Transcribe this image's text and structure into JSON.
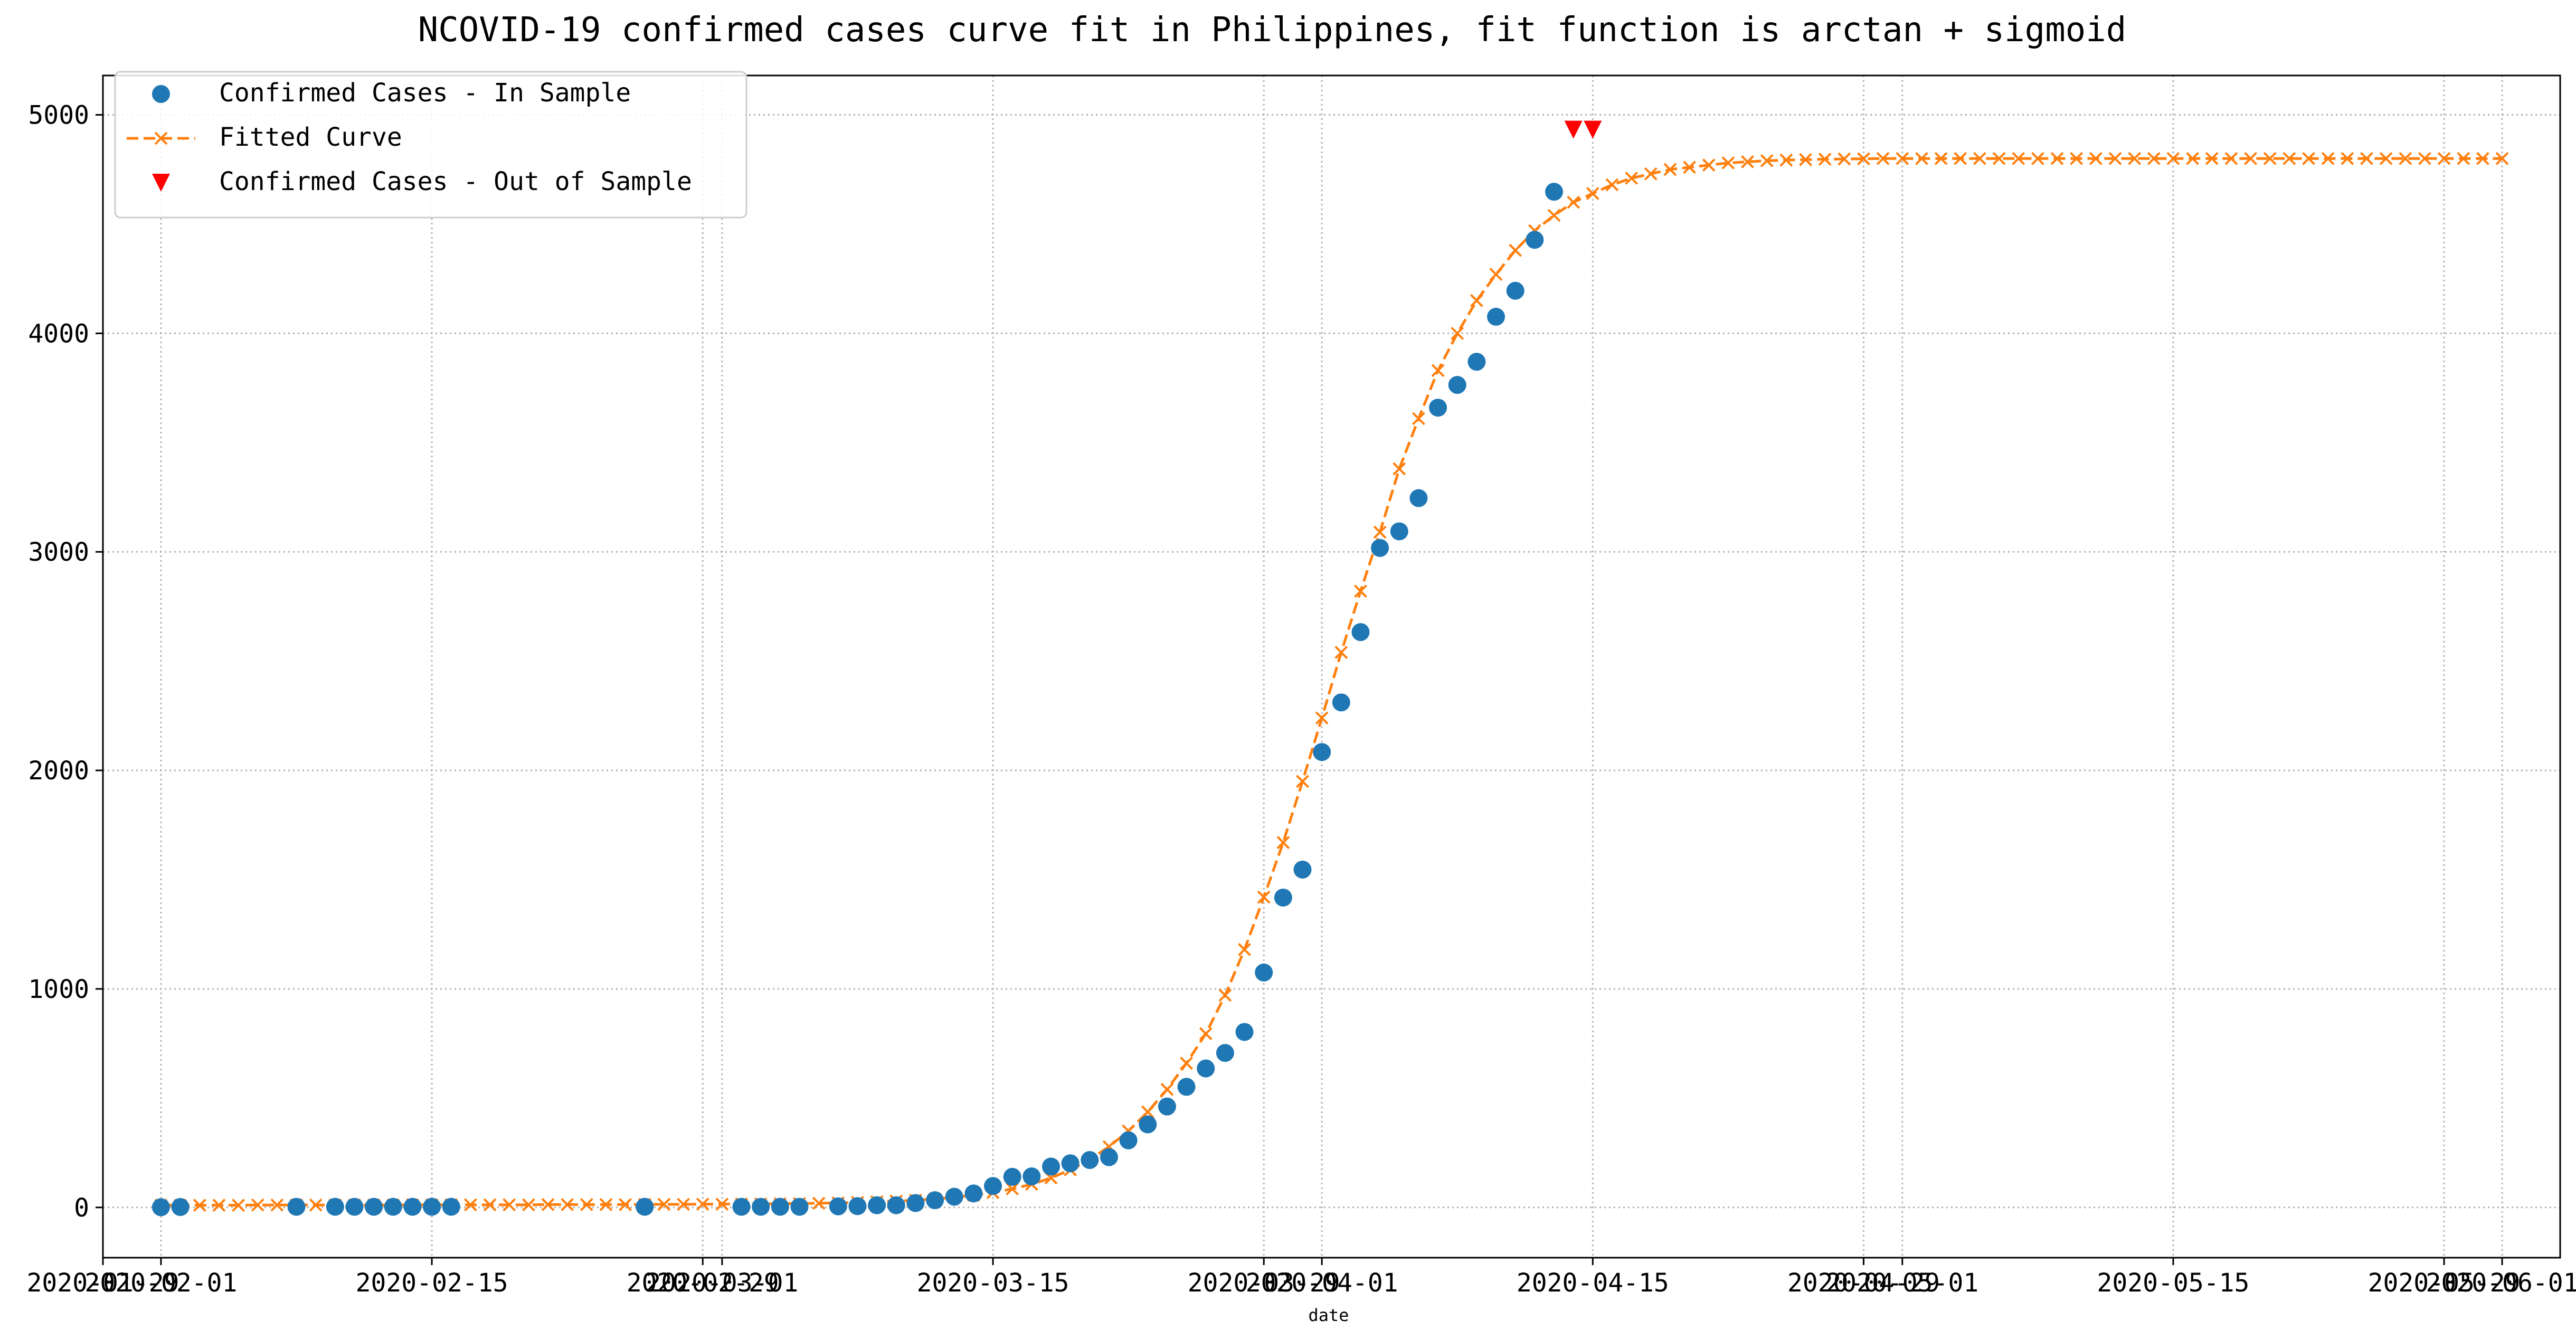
{
  "chart_data": {
    "type": "scatter",
    "title": "NCOVID-19 confirmed cases curve fit in Philippines, fit function is arctan + sigmoid",
    "xlabel": "date",
    "ylabel": "",
    "xlim": [
      "2020-01-29",
      "2020-06-04"
    ],
    "ylim": [
      -230,
      5180
    ],
    "grid": true,
    "legend_position": "top-left",
    "colors": {
      "in_sample": "#1f77b4",
      "fitted": "#ff7f0e",
      "out_sample": "#ff0000",
      "grid": "#b0b0b0"
    },
    "x_ticks": [
      {
        "date": "2020-01-29",
        "label": "2020-01-29"
      },
      {
        "date": "2020-02-01",
        "label": "2020-02-01"
      },
      {
        "date": "2020-02-15",
        "label": "2020-02-15"
      },
      {
        "date": "2020-02-29",
        "label": "2020-02-29"
      },
      {
        "date": "2020-03-01",
        "label": "2020-03-01"
      },
      {
        "date": "2020-03-15",
        "label": "2020-03-15"
      },
      {
        "date": "2020-03-29",
        "label": "2020-03-29"
      },
      {
        "date": "2020-04-01",
        "label": "2020-04-01"
      },
      {
        "date": "2020-04-15",
        "label": "2020-04-15"
      },
      {
        "date": "2020-04-29",
        "label": "2020-04-29"
      },
      {
        "date": "2020-05-01",
        "label": "2020-05-01"
      },
      {
        "date": "2020-05-15",
        "label": "2020-05-15"
      },
      {
        "date": "2020-05-29",
        "label": "2020-05-29"
      },
      {
        "date": "2020-06-01",
        "label": "2020-06-01"
      }
    ],
    "y_ticks": [
      {
        "value": 0,
        "label": "0"
      },
      {
        "value": 1000,
        "label": "1000"
      },
      {
        "value": 2000,
        "label": "2000"
      },
      {
        "value": 3000,
        "label": "3000"
      },
      {
        "value": 4000,
        "label": "4000"
      },
      {
        "value": 5000,
        "label": "5000"
      }
    ],
    "series": [
      {
        "name": "Confirmed Cases - In Sample",
        "marker": "circle",
        "points": [
          {
            "x": "2020-02-01",
            "y": 1
          },
          {
            "x": "2020-02-02",
            "y": 2
          },
          {
            "x": "2020-02-08",
            "y": 3
          },
          {
            "x": "2020-02-10",
            "y": 3
          },
          {
            "x": "2020-02-11",
            "y": 3
          },
          {
            "x": "2020-02-12",
            "y": 3
          },
          {
            "x": "2020-02-13",
            "y": 3
          },
          {
            "x": "2020-02-14",
            "y": 3
          },
          {
            "x": "2020-02-15",
            "y": 3
          },
          {
            "x": "2020-02-16",
            "y": 3
          },
          {
            "x": "2020-02-26",
            "y": 3
          },
          {
            "x": "2020-03-02",
            "y": 3
          },
          {
            "x": "2020-03-03",
            "y": 3
          },
          {
            "x": "2020-03-04",
            "y": 3
          },
          {
            "x": "2020-03-05",
            "y": 3
          },
          {
            "x": "2020-03-07",
            "y": 5
          },
          {
            "x": "2020-03-08",
            "y": 6
          },
          {
            "x": "2020-03-09",
            "y": 10
          },
          {
            "x": "2020-03-10",
            "y": 10
          },
          {
            "x": "2020-03-11",
            "y": 20
          },
          {
            "x": "2020-03-12",
            "y": 33
          },
          {
            "x": "2020-03-13",
            "y": 49
          },
          {
            "x": "2020-03-14",
            "y": 64
          },
          {
            "x": "2020-03-15",
            "y": 98
          },
          {
            "x": "2020-03-16",
            "y": 140
          },
          {
            "x": "2020-03-17",
            "y": 142
          },
          {
            "x": "2020-03-18",
            "y": 187
          },
          {
            "x": "2020-03-19",
            "y": 202
          },
          {
            "x": "2020-03-20",
            "y": 217
          },
          {
            "x": "2020-03-21",
            "y": 230
          },
          {
            "x": "2020-03-22",
            "y": 307
          },
          {
            "x": "2020-03-23",
            "y": 380
          },
          {
            "x": "2020-03-24",
            "y": 462
          },
          {
            "x": "2020-03-25",
            "y": 552
          },
          {
            "x": "2020-03-26",
            "y": 636
          },
          {
            "x": "2020-03-27",
            "y": 707
          },
          {
            "x": "2020-03-28",
            "y": 803
          },
          {
            "x": "2020-03-29",
            "y": 1075
          },
          {
            "x": "2020-03-30",
            "y": 1418
          },
          {
            "x": "2020-03-31",
            "y": 1546
          },
          {
            "x": "2020-04-01",
            "y": 2084
          },
          {
            "x": "2020-04-02",
            "y": 2311
          },
          {
            "x": "2020-04-03",
            "y": 2633
          },
          {
            "x": "2020-04-04",
            "y": 3018
          },
          {
            "x": "2020-04-05",
            "y": 3094
          },
          {
            "x": "2020-04-06",
            "y": 3246
          },
          {
            "x": "2020-04-07",
            "y": 3660
          },
          {
            "x": "2020-04-08",
            "y": 3764
          },
          {
            "x": "2020-04-09",
            "y": 3870
          },
          {
            "x": "2020-04-10",
            "y": 4076
          },
          {
            "x": "2020-04-11",
            "y": 4195
          },
          {
            "x": "2020-04-12",
            "y": 4428
          },
          {
            "x": "2020-04-13",
            "y": 4648
          }
        ]
      },
      {
        "name": "Fitted Curve",
        "marker": "x",
        "line": "dashed",
        "start": "2020-02-01",
        "values": [
          10,
          10,
          10,
          10,
          10,
          11,
          11,
          11,
          11,
          11,
          11,
          11,
          11,
          12,
          12,
          12,
          12,
          12,
          12,
          12,
          13,
          13,
          13,
          13,
          13,
          14,
          14,
          14,
          15,
          15,
          16,
          16,
          17,
          18,
          19,
          21,
          23,
          26,
          29,
          33,
          39,
          46,
          56,
          68,
          85,
          106,
          135,
          172,
          219,
          278,
          350,
          437,
          540,
          660,
          795,
          971,
          1180,
          1420,
          1670,
          1950,
          2240,
          2540,
          2820,
          3090,
          3380,
          3610,
          3830,
          4000,
          4150,
          4270,
          4380,
          4470,
          4540,
          4600,
          4640,
          4680,
          4710,
          4730,
          4750,
          4760,
          4770,
          4780,
          4785,
          4790,
          4793,
          4795,
          4797,
          4798,
          4799,
          4800,
          4800,
          4800,
          4800,
          4800,
          4800,
          4800,
          4800,
          4800,
          4800,
          4800,
          4800,
          4800,
          4800,
          4800,
          4800,
          4800,
          4800,
          4800,
          4800,
          4800,
          4800,
          4800,
          4800,
          4800,
          4800,
          4800,
          4800,
          4800,
          4800,
          4800,
          4800,
          4800
        ]
      },
      {
        "name": "Confirmed Cases - Out of Sample",
        "marker": "triangle-down",
        "points": [
          {
            "x": "2020-04-14",
            "y": 4932
          },
          {
            "x": "2020-04-15",
            "y": 4932
          }
        ]
      }
    ]
  }
}
